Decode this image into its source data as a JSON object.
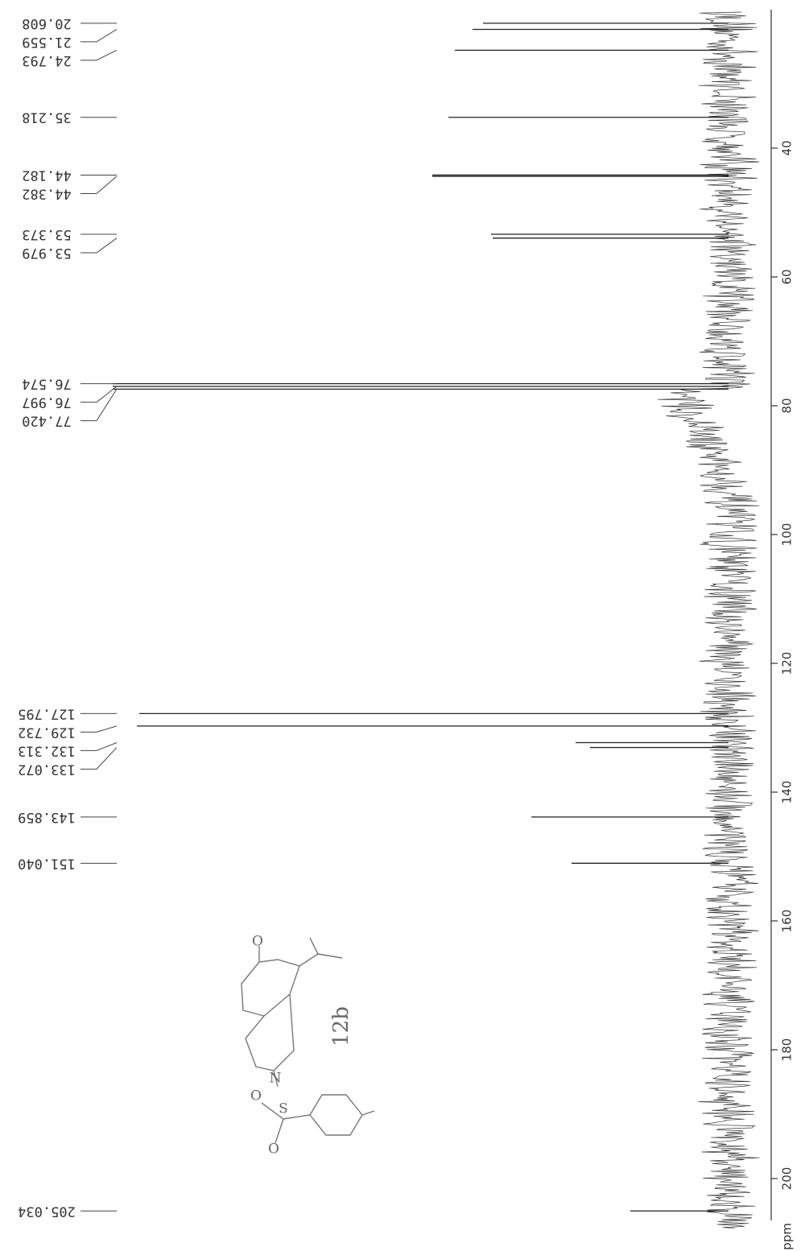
{
  "chart_data": {
    "type": "spectrum",
    "x_label": "ppm",
    "x": [
      20.608,
      21.559,
      24.793,
      35.218,
      44.182,
      44.382,
      53.373,
      53.979,
      76.574,
      76.997,
      77.42,
      127.795,
      129.732,
      132.313,
      133.072,
      143.859,
      151.04,
      205.034
    ],
    "peak_labels": [
      "20.608",
      "21.559",
      "24.793",
      "35.218",
      "44.182",
      "44.382",
      "53.373",
      "53.979",
      "76.574",
      "76.997",
      "77.420",
      "127.795",
      "129.732",
      "132.313",
      "133.072",
      "143.859",
      "151.040",
      "205.034"
    ],
    "values": [
      305,
      318,
      340,
      348,
      368,
      368,
      295,
      293,
      765,
      765,
      765,
      732,
      735,
      190,
      172,
      245,
      195,
      122
    ],
    "xlim": [
      18.5,
      206.5
    ],
    "xticks": [
      40,
      60,
      80,
      100,
      120,
      140,
      160,
      180,
      200
    ],
    "color": "#222",
    "annotation": "12b",
    "atoms": [
      "O",
      "N",
      "S",
      "O",
      "O"
    ]
  }
}
